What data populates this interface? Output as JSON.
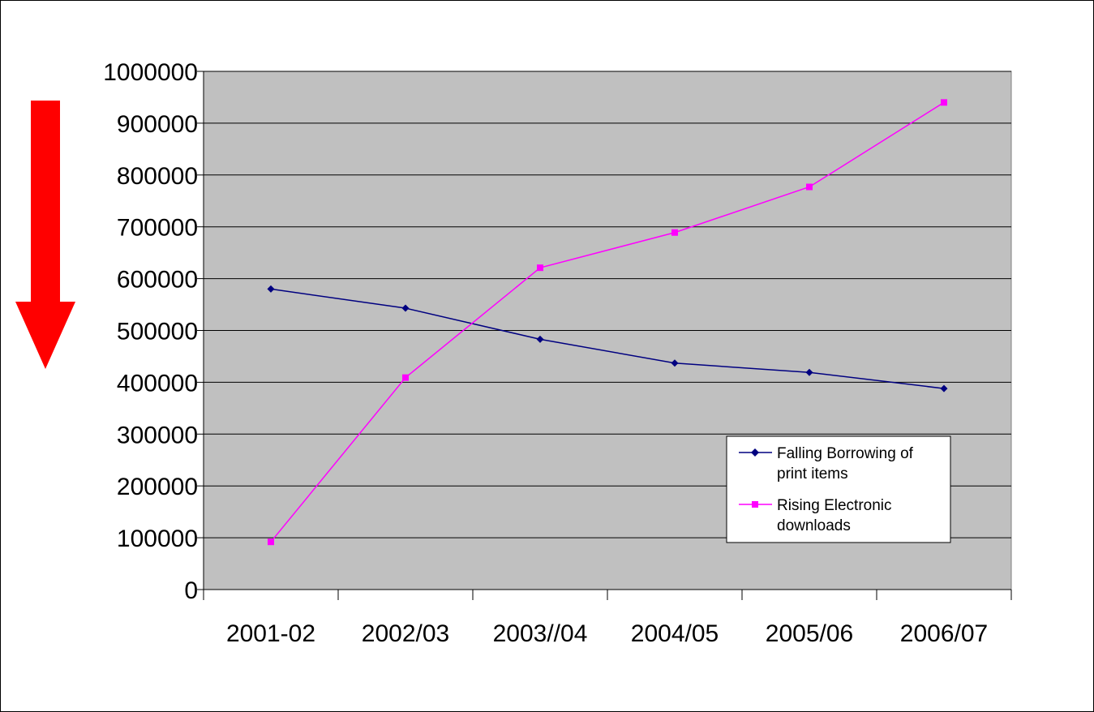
{
  "chart_data": {
    "type": "line",
    "categories": [
      "2001-02",
      "2002/03",
      "2003//04",
      "2004/05",
      "2005/06",
      "2006/07"
    ],
    "series": [
      {
        "name": "Falling Borrowing of print items",
        "name_lines": [
          "Falling Borrowing of",
          "print items"
        ],
        "color": "#000080",
        "marker": "diamond",
        "values": [
          580000,
          543000,
          483000,
          437000,
          419000,
          388000
        ]
      },
      {
        "name": "Rising Electronic downloads",
        "name_lines": [
          "Rising Electronic",
          "downloads"
        ],
        "color": "#ff00ff",
        "marker": "square",
        "values": [
          92000,
          409000,
          621000,
          689000,
          777000,
          940000
        ]
      }
    ],
    "y_ticks": [
      "0",
      "100000",
      "200000",
      "300000",
      "400000",
      "500000",
      "600000",
      "700000",
      "800000",
      "900000",
      "1000000"
    ],
    "ylim": [
      0,
      1000000
    ],
    "ytick_step": 100000,
    "grid": true,
    "plot_background": "#c0c0c0",
    "legend_position": "lower-right",
    "annotation_arrow": {
      "direction": "down",
      "color": "#ff0000"
    }
  }
}
